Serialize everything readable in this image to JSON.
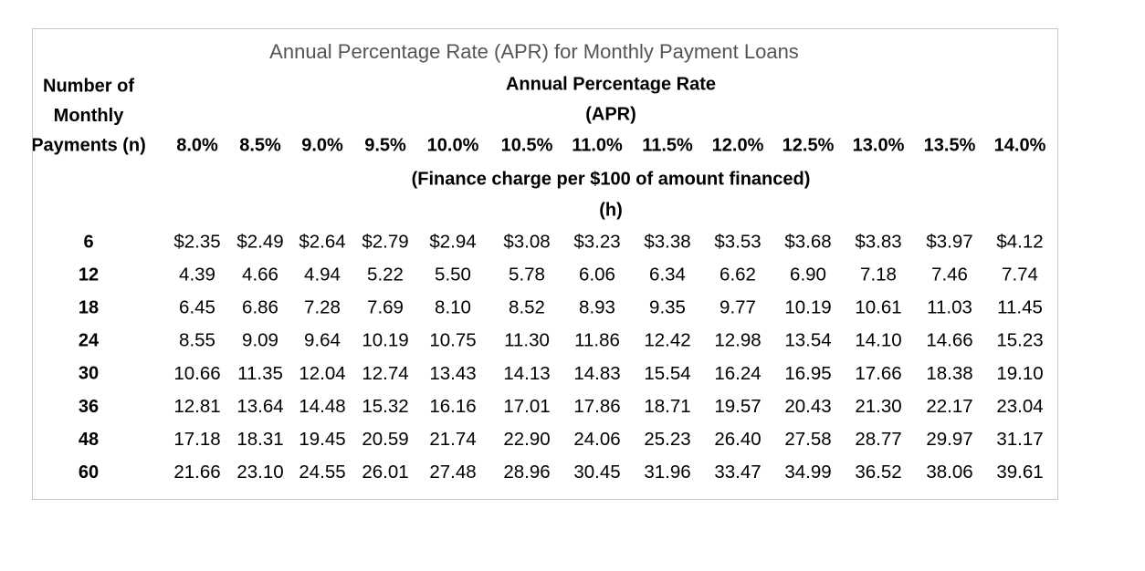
{
  "title": "Annual Percentage Rate (APR) for Monthly Payment Loans",
  "header": {
    "rate_label": [
      "Annual Percentage Rate",
      "(APR)"
    ],
    "n_label": [
      "Number of",
      "Monthly",
      "Payments (n)"
    ],
    "rates": [
      "8.0%",
      "8.5%",
      "9.0%",
      "9.5%",
      "10.0%",
      "10.5%",
      "11.0%",
      "11.5%",
      "12.0%",
      "12.5%",
      "13.0%",
      "13.5%",
      "14.0%"
    ],
    "finance_label": [
      "(Finance charge per $100 of amount financed)",
      "(h)"
    ]
  },
  "table": {
    "rows": [
      {
        "n": "6",
        "values": [
          "$2.35",
          "$2.49",
          "$2.64",
          "$2.79",
          "$2.94",
          "$3.08",
          "$3.23",
          "$3.38",
          "$3.53",
          "$3.68",
          "$3.83",
          "$3.97",
          "$4.12"
        ]
      },
      {
        "n": "12",
        "values": [
          "4.39",
          "4.66",
          "4.94",
          "5.22",
          "5.50",
          "5.78",
          "6.06",
          "6.34",
          "6.62",
          "6.90",
          "7.18",
          "7.46",
          "7.74"
        ]
      },
      {
        "n": "18",
        "values": [
          "6.45",
          "6.86",
          "7.28",
          "7.69",
          "8.10",
          "8.52",
          "8.93",
          "9.35",
          "9.77",
          "10.19",
          "10.61",
          "11.03",
          "11.45"
        ]
      },
      {
        "n": "24",
        "values": [
          "8.55",
          "9.09",
          "9.64",
          "10.19",
          "10.75",
          "11.30",
          "11.86",
          "12.42",
          "12.98",
          "13.54",
          "14.10",
          "14.66",
          "15.23"
        ]
      },
      {
        "n": "30",
        "values": [
          "10.66",
          "11.35",
          "12.04",
          "12.74",
          "13.43",
          "14.13",
          "14.83",
          "15.54",
          "16.24",
          "16.95",
          "17.66",
          "18.38",
          "19.10"
        ]
      },
      {
        "n": "36",
        "values": [
          "12.81",
          "13.64",
          "14.48",
          "15.32",
          "16.16",
          "17.01",
          "17.86",
          "18.71",
          "19.57",
          "20.43",
          "21.30",
          "22.17",
          "23.04"
        ]
      },
      {
        "n": "48",
        "values": [
          "17.18",
          "18.31",
          "19.45",
          "20.59",
          "21.74",
          "22.90",
          "24.06",
          "25.23",
          "26.40",
          "27.58",
          "28.77",
          "29.97",
          "31.17"
        ]
      },
      {
        "n": "60",
        "values": [
          "21.66",
          "23.10",
          "24.55",
          "26.01",
          "27.48",
          "28.96",
          "30.45",
          "31.96",
          "33.47",
          "34.99",
          "36.52",
          "38.06",
          "39.61"
        ]
      }
    ]
  }
}
